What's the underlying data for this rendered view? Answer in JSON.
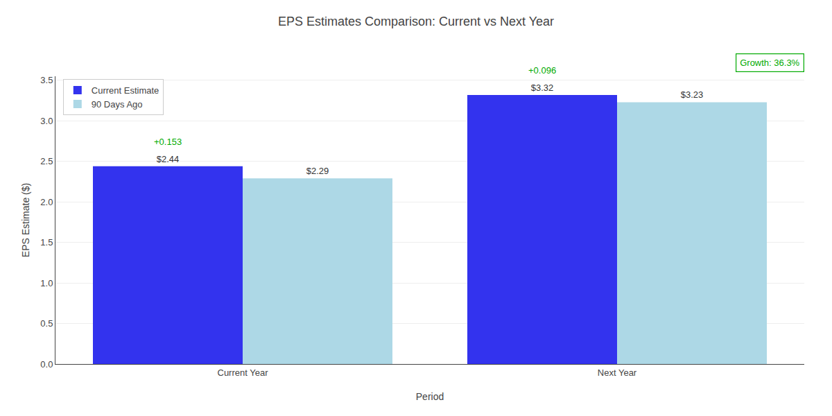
{
  "chart_data": {
    "type": "bar",
    "title": "EPS Estimates Comparison: Current vs Next Year",
    "xlabel": "Period",
    "ylabel": "EPS Estimate ($)",
    "categories": [
      "Current Year",
      "Next Year"
    ],
    "series": [
      {
        "name": "Current Estimate",
        "color": "#3333ee",
        "values": [
          2.44,
          3.32
        ],
        "value_labels": [
          "$2.44",
          "$3.32"
        ]
      },
      {
        "name": "90 Days Ago",
        "color": "#add8e6",
        "values": [
          2.29,
          3.23
        ],
        "value_labels": [
          "$2.29",
          "$3.23"
        ]
      }
    ],
    "data_labels": true,
    "ylim": [
      0,
      3.55
    ],
    "yticks": [
      {
        "value": 0,
        "label": "0.0"
      },
      {
        "value": 0.5,
        "label": "0.5"
      },
      {
        "value": 1,
        "label": "1.0"
      },
      {
        "value": 1.5,
        "label": "1.5"
      },
      {
        "value": 2,
        "label": "2.0"
      },
      {
        "value": 2.5,
        "label": "2.5"
      },
      {
        "value": 3,
        "label": "3.0"
      },
      {
        "value": 3.5,
        "label": "3.5"
      }
    ],
    "grid": true,
    "legend": "upper left",
    "annotations": [
      {
        "text": "+0.153",
        "category": "Current Year",
        "series": "Current Estimate",
        "color": "#00aa00"
      },
      {
        "text": "+0.096",
        "category": "Next Year",
        "series": "Current Estimate",
        "color": "#00aa00"
      },
      {
        "text": "Growth: 36.3%",
        "color": "#00aa00"
      }
    ]
  }
}
